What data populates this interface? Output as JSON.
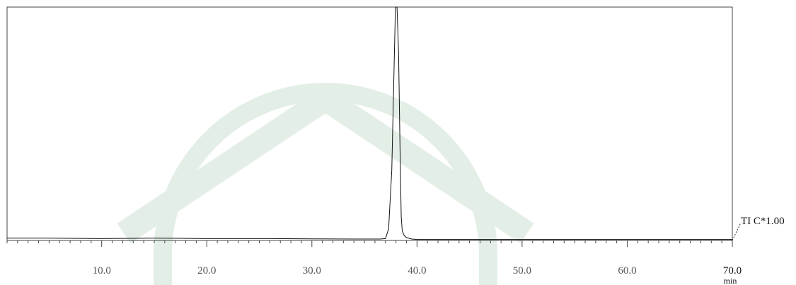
{
  "watermark_color": "#e3efe6",
  "chart_data": {
    "type": "line",
    "title": "",
    "xlabel": "min",
    "ylabel": "",
    "xlim": [
      1.0,
      70.0
    ],
    "ylim": [
      0,
      1
    ],
    "grid": false,
    "legend": "none",
    "x_ticks": [
      10.0,
      20.0,
      30.0,
      40.0,
      50.0,
      60.0,
      70.0
    ],
    "x_tick_labels": [
      "10.0",
      "20.0",
      "30.0",
      "40.0",
      "50.0",
      "60.0",
      "70.0"
    ],
    "x_unit": "min",
    "trace_label": "TI C*1.00",
    "series": [
      {
        "x": [
          1.0,
          5.0,
          10.0,
          15.0,
          20.0,
          25.0,
          30.0,
          34.0,
          36.5,
          37.0,
          37.3,
          37.6,
          37.8,
          37.95,
          38.1,
          38.25,
          38.4,
          38.5,
          38.6,
          38.8,
          39.0,
          39.5,
          40.0,
          45.0,
          50.0,
          55.0,
          60.0,
          65.0,
          70.0
        ],
        "y": [
          0.01,
          0.01,
          0.008,
          0.01,
          0.008,
          0.008,
          0.007,
          0.006,
          0.006,
          0.008,
          0.05,
          0.3,
          0.7,
          1.0,
          1.0,
          0.8,
          0.35,
          0.1,
          0.04,
          0.02,
          0.012,
          0.006,
          0.004,
          0.004,
          0.004,
          0.004,
          0.004,
          0.004,
          0.004
        ]
      }
    ]
  }
}
